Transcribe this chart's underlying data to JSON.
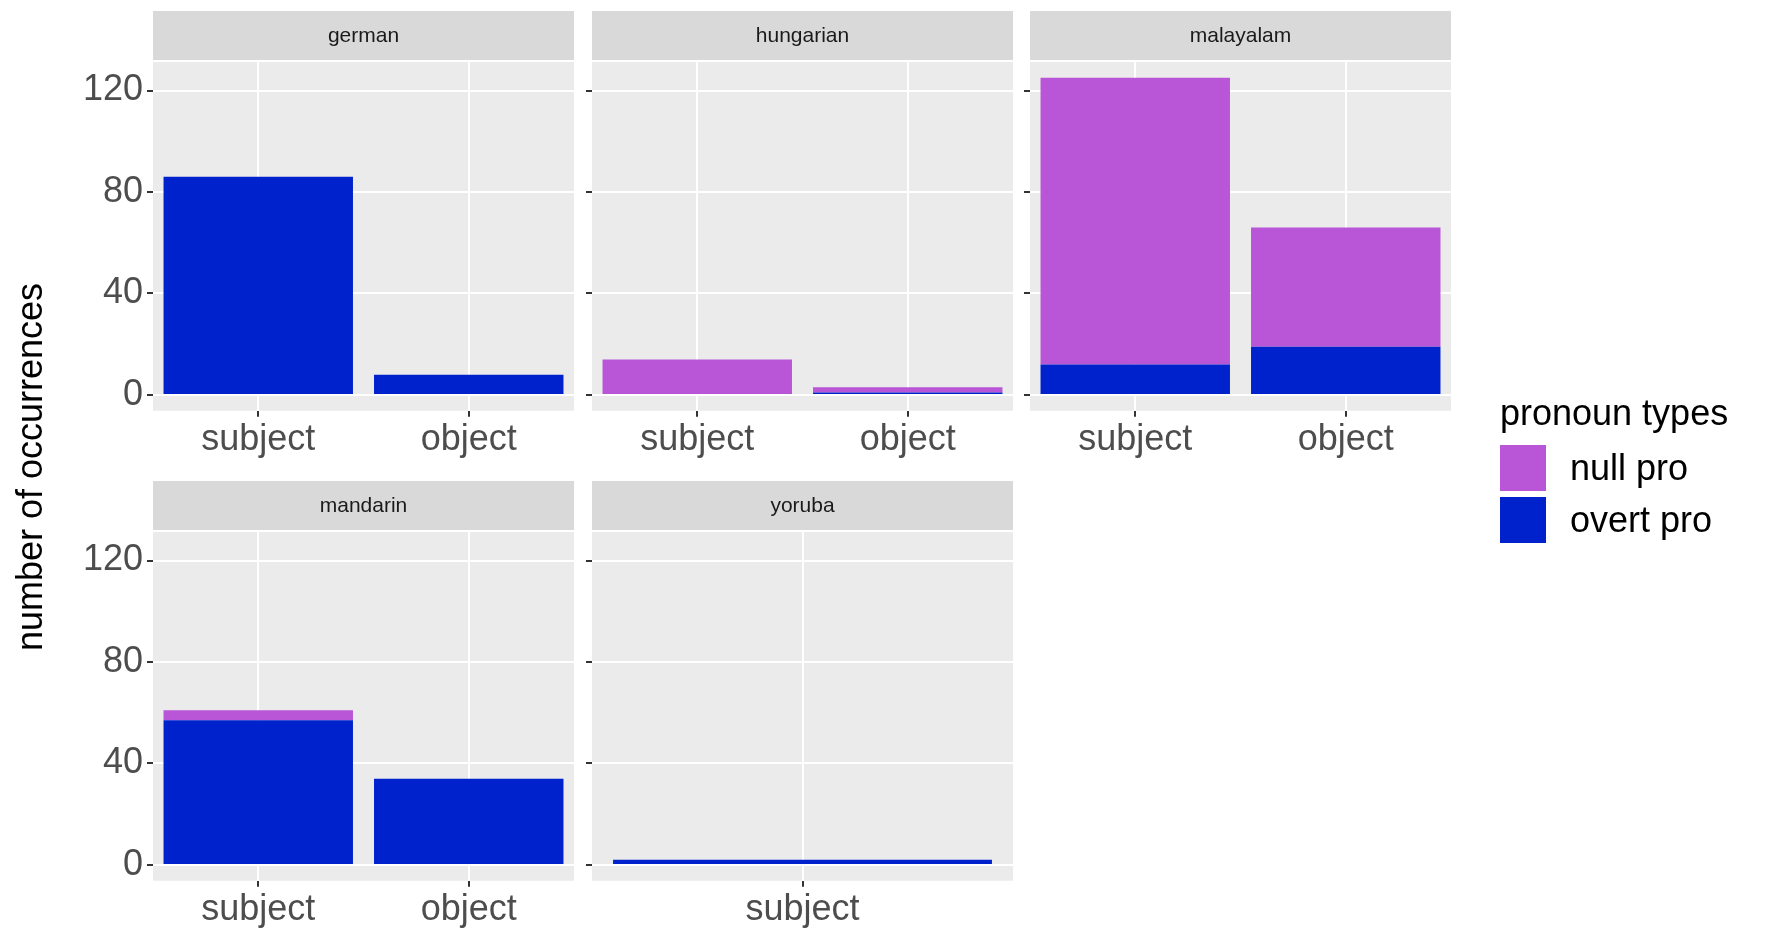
{
  "chart_data": [
    {
      "type": "bar",
      "title": "german",
      "ylabel": "number of occurrences",
      "categories": [
        "subject",
        "object"
      ],
      "stacked": true,
      "ylim": [
        -6.25,
        131.25
      ],
      "yticks": [
        0,
        40,
        80,
        120
      ],
      "grid": true,
      "series": [
        {
          "color": "#0022cc",
          "values": [
            86,
            8
          ]
        },
        {
          "color": "#b856d7",
          "values": [
            0,
            0
          ]
        }
      ]
    },
    {
      "type": "bar",
      "title": "hungarian",
      "categories": [
        "subject",
        "object"
      ],
      "stacked": true,
      "ylim": [
        -6.25,
        131.25
      ],
      "yticks": [
        0,
        40,
        80,
        120
      ],
      "grid": true,
      "tick_labels": "x",
      "series": [
        {
          "color": "#0022cc",
          "values": [
            0,
            1
          ]
        },
        {
          "color": "#b856d7",
          "values": [
            14,
            2
          ]
        }
      ]
    },
    {
      "type": "bar",
      "title": "malayalam",
      "categories": [
        "subject",
        "object"
      ],
      "stacked": true,
      "ylim": [
        -6.25,
        131.25
      ],
      "yticks": [
        0,
        40,
        80,
        120
      ],
      "grid": true,
      "tick_labels": "x",
      "legend": "right",
      "legend_title": "pronoun types",
      "series": [
        {
          "name": "overt pro",
          "color": "#0022cc",
          "values": [
            12,
            19
          ]
        },
        {
          "name": "null pro",
          "color": "#b856d7",
          "values": [
            113,
            47
          ]
        }
      ]
    },
    {
      "type": "bar",
      "title": "mandarin",
      "categories": [
        "subject",
        "object"
      ],
      "stacked": true,
      "ylim": [
        -6.25,
        131.25
      ],
      "yticks": [
        0,
        40,
        80,
        120
      ],
      "grid": true,
      "series": [
        {
          "color": "#0022cc",
          "values": [
            57,
            34
          ]
        },
        {
          "color": "#b856d7",
          "values": [
            4,
            0
          ]
        }
      ]
    },
    {
      "type": "bar",
      "title": "yoruba",
      "categories": [
        "subject"
      ],
      "stacked": true,
      "ylim": [
        -6.25,
        131.25
      ],
      "yticks": [
        0,
        40,
        80,
        120
      ],
      "grid": true,
      "tick_labels": "x",
      "series": [
        {
          "color": "#0022cc",
          "values": [
            2
          ]
        },
        {
          "color": "#b856d7",
          "values": [
            0
          ]
        }
      ]
    }
  ]
}
